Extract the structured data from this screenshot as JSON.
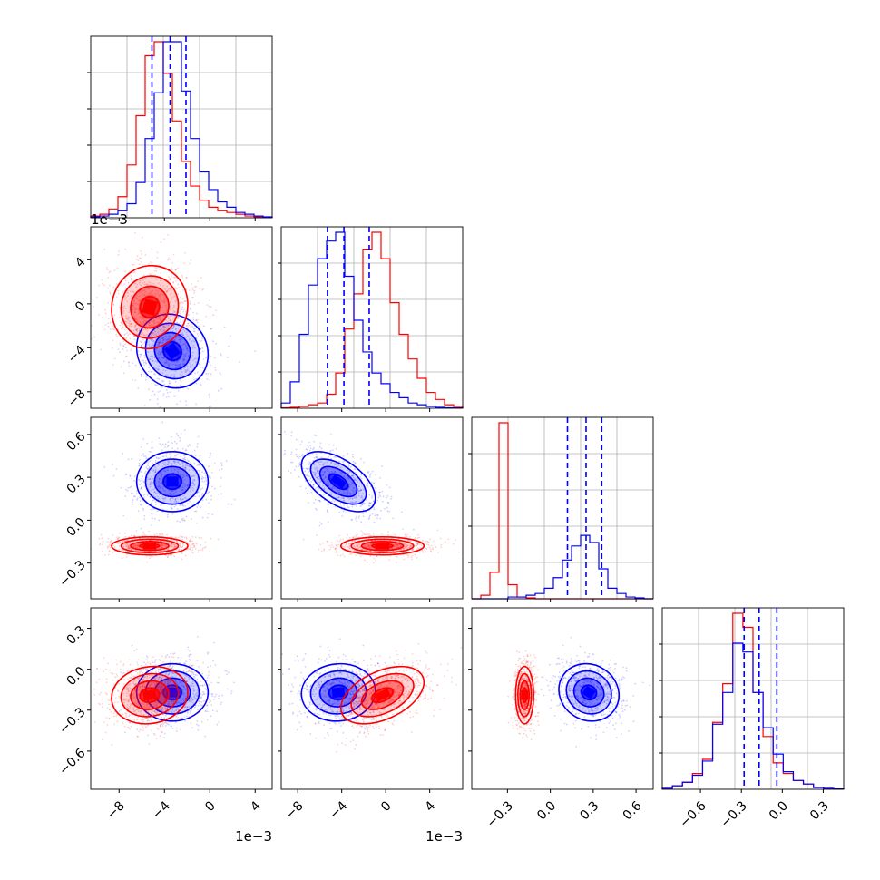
{
  "chart_data": {
    "type": "corner",
    "colors": {
      "series_a": "#0000ff",
      "series_b": "#ff0000"
    },
    "params": [
      {
        "id": "p1",
        "range": [
          -10.5,
          5.5
        ],
        "ticks": [
          -8,
          -4,
          0,
          4
        ],
        "tick_labels": [
          "−8",
          "−4",
          "0",
          "4"
        ],
        "offset_label": "1e−3"
      },
      {
        "id": "p2",
        "range": [
          -9.5,
          7.0
        ],
        "ticks": [
          -8,
          -4,
          0,
          4
        ],
        "tick_labels": [
          "−8",
          "−4",
          "0",
          "4"
        ],
        "offset_label": "1e−3"
      },
      {
        "id": "p3",
        "range": [
          -0.55,
          0.72
        ],
        "ticks": [
          -0.3,
          0.0,
          0.3,
          0.6
        ],
        "tick_labels": [
          "−0.3",
          "0.0",
          "0.3",
          "0.6"
        ]
      },
      {
        "id": "p4",
        "range": [
          -0.88,
          0.45
        ],
        "ticks": [
          -0.6,
          -0.3,
          0.0,
          0.3
        ],
        "tick_labels": [
          "−0.6",
          "−0.3",
          "0.0",
          "0.3"
        ]
      }
    ],
    "series": [
      {
        "key": "series_a",
        "mean": [
          -3.3,
          -4.3,
          0.27,
          -0.17
        ],
        "sd": [
          1.5,
          1.6,
          0.1,
          0.1
        ],
        "quantiles": [
          [
            -5.1,
            -3.5,
            -2.1
          ],
          [
            -5.3,
            -3.8,
            -1.5
          ],
          [
            0.12,
            0.25,
            0.36
          ],
          [
            -0.28,
            -0.17,
            -0.04
          ]
        ]
      },
      {
        "key": "series_b",
        "mean": [
          -5.3,
          -0.3,
          -0.18,
          -0.19
        ],
        "sd": [
          1.6,
          1.8,
          0.03,
          0.1
        ]
      }
    ],
    "histograms": [
      {
        "param": "p1",
        "series_a": [
          0.5,
          1,
          2,
          4,
          8,
          20,
          45,
          71,
          100,
          100,
          72,
          45,
          26,
          16,
          9,
          6,
          3,
          2,
          1,
          0.5
        ],
        "series_b": [
          1,
          2,
          5,
          12,
          30,
          58,
          92,
          100,
          82,
          55,
          32,
          18,
          10,
          6,
          4,
          3,
          2,
          1,
          0.5,
          0.3
        ]
      },
      {
        "param": "p2",
        "series_a": [
          3,
          15,
          42,
          70,
          85,
          95,
          100,
          75,
          50,
          32,
          20,
          14,
          9,
          6,
          3,
          2,
          1,
          0.5,
          0.3,
          0.2
        ],
        "series_b": [
          0.3,
          0.5,
          1,
          2,
          3,
          8,
          20,
          45,
          65,
          90,
          100,
          85,
          60,
          42,
          28,
          17,
          9,
          5,
          2,
          1
        ]
      },
      {
        "param": "p3",
        "series_a": [
          0,
          0,
          0,
          0,
          1,
          1,
          2,
          3,
          6,
          12,
          22,
          30,
          36,
          32,
          17,
          6,
          3,
          1,
          0.5,
          0
        ],
        "series_b": [
          0,
          2,
          15,
          100,
          8,
          1,
          0.5,
          0,
          0,
          0,
          0,
          0,
          0,
          0,
          0,
          0,
          0,
          0,
          0,
          0
        ]
      },
      {
        "param": "p4",
        "series_a": [
          0.5,
          2,
          4,
          8,
          16,
          37,
          55,
          83,
          78,
          55,
          35,
          20,
          10,
          5,
          3,
          1,
          0.5,
          0.2
        ],
        "series_b": [
          0.5,
          2,
          4,
          9,
          17,
          38,
          60,
          100,
          92,
          55,
          30,
          15,
          9,
          5,
          3,
          1,
          0.5,
          0.2
        ]
      }
    ],
    "correlations": {
      "series_a": [
        [
          1,
          -0.1,
          0.0,
          0.0
        ],
        [
          -0.1,
          1,
          -0.55,
          0.05
        ],
        [
          0.0,
          -0.55,
          1,
          -0.1
        ],
        [
          0.0,
          0.05,
          -0.1,
          1
        ]
      ],
      "series_b": [
        [
          1,
          0.05,
          0.0,
          0.1
        ],
        [
          0.05,
          1,
          0.0,
          0.45
        ],
        [
          0.0,
          0.0,
          1,
          0.0
        ],
        [
          0.1,
          0.45,
          0.0,
          1
        ]
      ]
    }
  }
}
